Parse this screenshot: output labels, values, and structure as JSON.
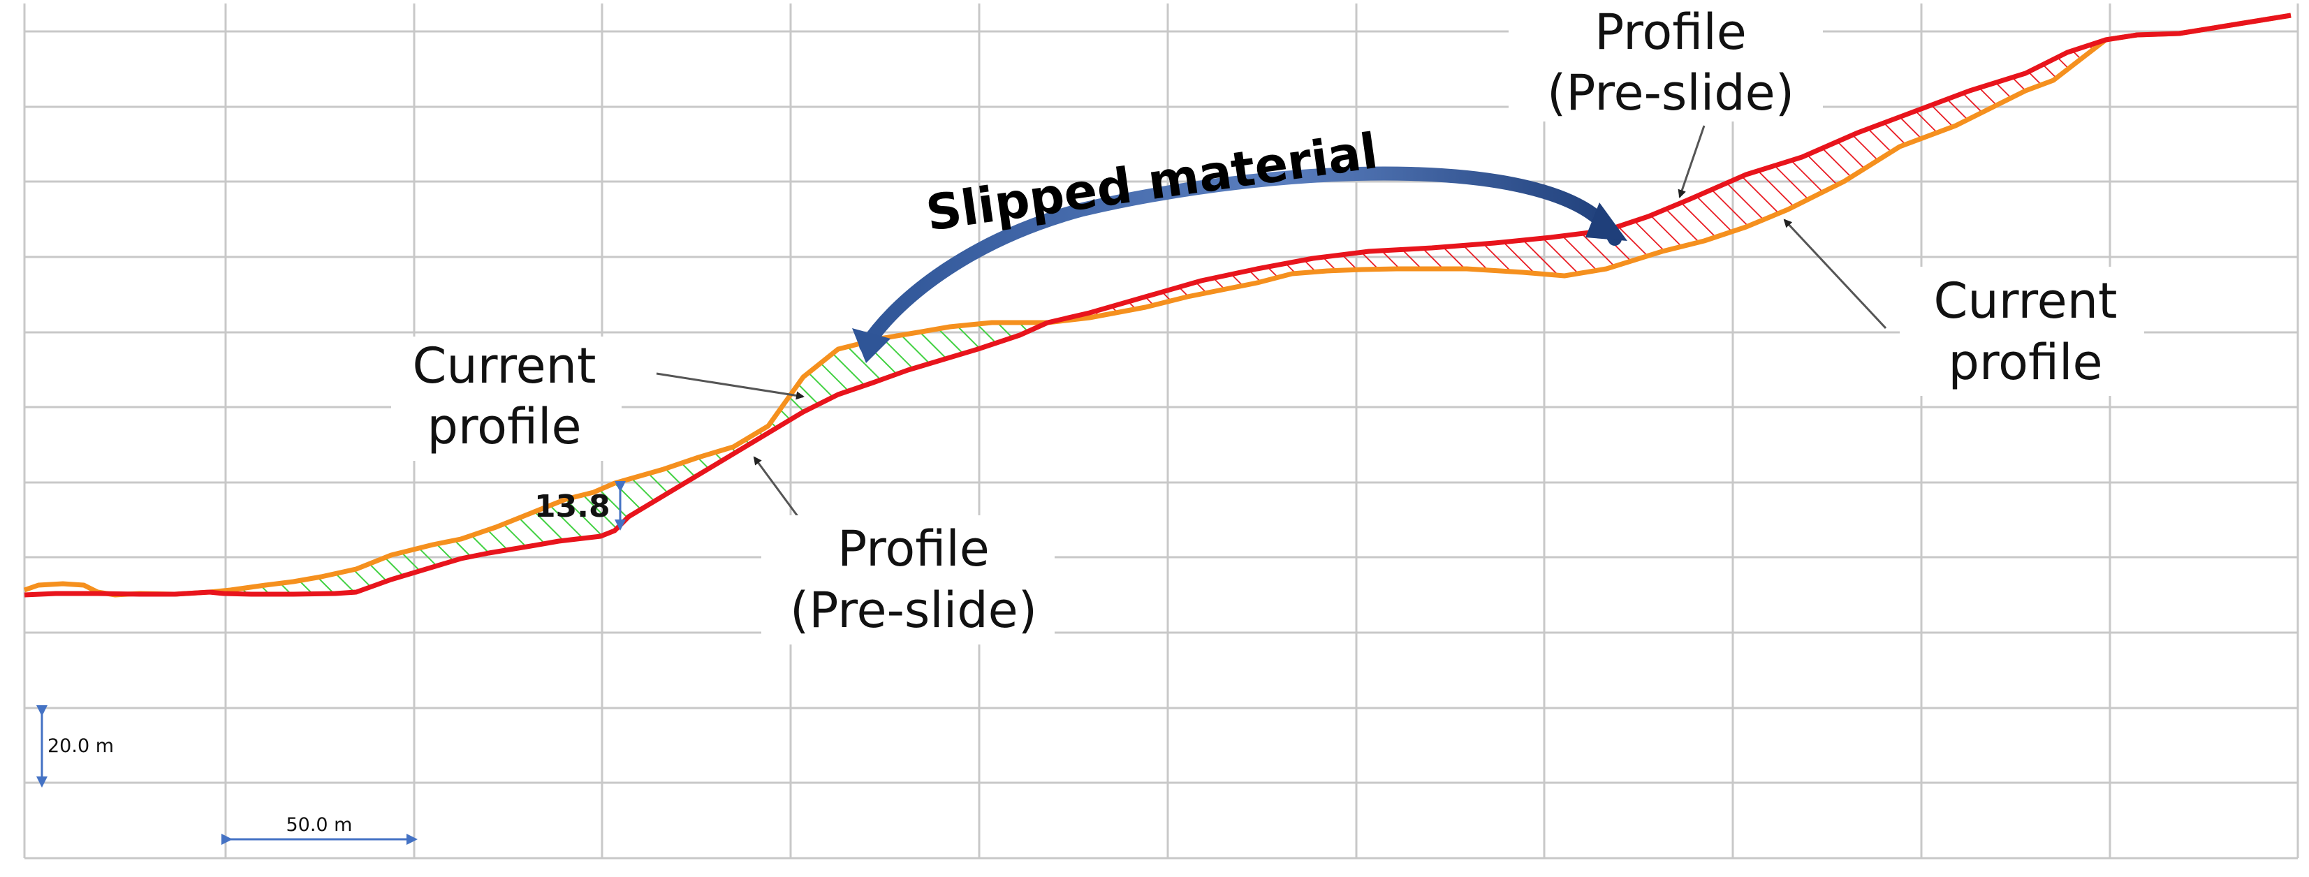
{
  "title": "Slipped material",
  "labels": {
    "current_profile_left": [
      "Current",
      "profile"
    ],
    "current_profile_right": [
      "Current",
      "profile"
    ],
    "pre_slide_top": [
      "Profile",
      "(Pre-slide)"
    ],
    "pre_slide_bottom": [
      "Profile",
      "(Pre-slide)"
    ]
  },
  "dimension": {
    "value": "13.8"
  },
  "scale_bars": {
    "vertical": "20.0 m",
    "horizontal": "50.0 m"
  },
  "colors": {
    "pre_slide_profile": "#e8141c",
    "current_profile": "#f5901e",
    "deposition_hatch": "#42d142",
    "erosion_hatch": "#e8141c",
    "arrow": "#2f5597",
    "grid": "#c8c8c8",
    "leader": "#555555",
    "scale": "#4472c4"
  },
  "icons": {
    "arrow": "curved-arrow-icon",
    "leader": "leader-line-icon"
  }
}
